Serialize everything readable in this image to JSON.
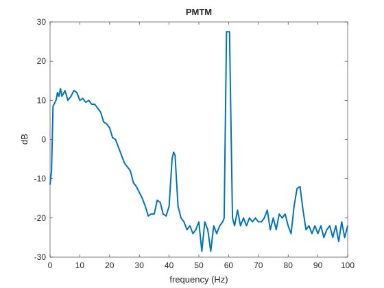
{
  "chart_data": {
    "type": "line",
    "title": "PMTM",
    "xlabel": "frequency (Hz)",
    "ylabel": "dB",
    "x": [
      0,
      0.5,
      1,
      2,
      2.5,
      3,
      3.5,
      4,
      5,
      6,
      7,
      8,
      9,
      10,
      11,
      12,
      13,
      14,
      15,
      16,
      17,
      18,
      19,
      20,
      21,
      22,
      23,
      24,
      25,
      26,
      27,
      28,
      29,
      30,
      31,
      32,
      33,
      34,
      35,
      36,
      37,
      38,
      39,
      40,
      41,
      41.5,
      42,
      43,
      44,
      45,
      46,
      47,
      48,
      49,
      50,
      51,
      52,
      53,
      54,
      55,
      56,
      57,
      58,
      58.5,
      59.3,
      60.3,
      61.3,
      62,
      63,
      64,
      65,
      66,
      67,
      68,
      69,
      70,
      71,
      72,
      73,
      74,
      75,
      76,
      77,
      78,
      79,
      80,
      81,
      82,
      83,
      84,
      85,
      86,
      87,
      88,
      89,
      90,
      91,
      92,
      93,
      94,
      95,
      96,
      97,
      98,
      99,
      100
    ],
    "series": [
      {
        "name": "PMTM",
        "color": "#0072bd",
        "values": [
          -11.5,
          -8,
          8.5,
          10,
          12,
          11,
          13,
          11,
          12.5,
          10,
          11,
          12.5,
          12,
          10,
          10.5,
          9.5,
          10,
          9,
          9,
          8,
          7,
          4.5,
          4,
          3,
          0.5,
          0,
          -2,
          -4,
          -6,
          -7,
          -8,
          -11,
          -12,
          -13.5,
          -15,
          -17,
          -19.5,
          -19,
          -19,
          -15.5,
          -16,
          -19,
          -19.5,
          -17,
          -5,
          -3.2,
          -4,
          -17,
          -20,
          -21,
          -23,
          -22,
          -24,
          -23,
          -21,
          -28.5,
          -21,
          -23,
          -28.5,
          -22,
          -24,
          -22,
          -21,
          -20,
          27.5,
          27.5,
          -20,
          -22,
          -18,
          -22,
          -20,
          -22,
          -20,
          -21,
          -20,
          -21,
          -21,
          -20,
          -18,
          -23,
          -20,
          -23,
          -19,
          -20,
          -19,
          -22,
          -24,
          -17,
          -12.5,
          -12,
          -18,
          -23,
          -22,
          -24,
          -22,
          -24,
          -22,
          -25,
          -23,
          -22,
          -25,
          -22,
          -26,
          -21,
          -25,
          -22
        ]
      }
    ],
    "xlim": [
      0,
      100
    ],
    "xticks": [
      0,
      10,
      20,
      30,
      40,
      50,
      60,
      70,
      80,
      90,
      100
    ],
    "ylim": [
      -30,
      30
    ],
    "yticks": [
      -30,
      -20,
      -10,
      0,
      10,
      20,
      30
    ]
  }
}
